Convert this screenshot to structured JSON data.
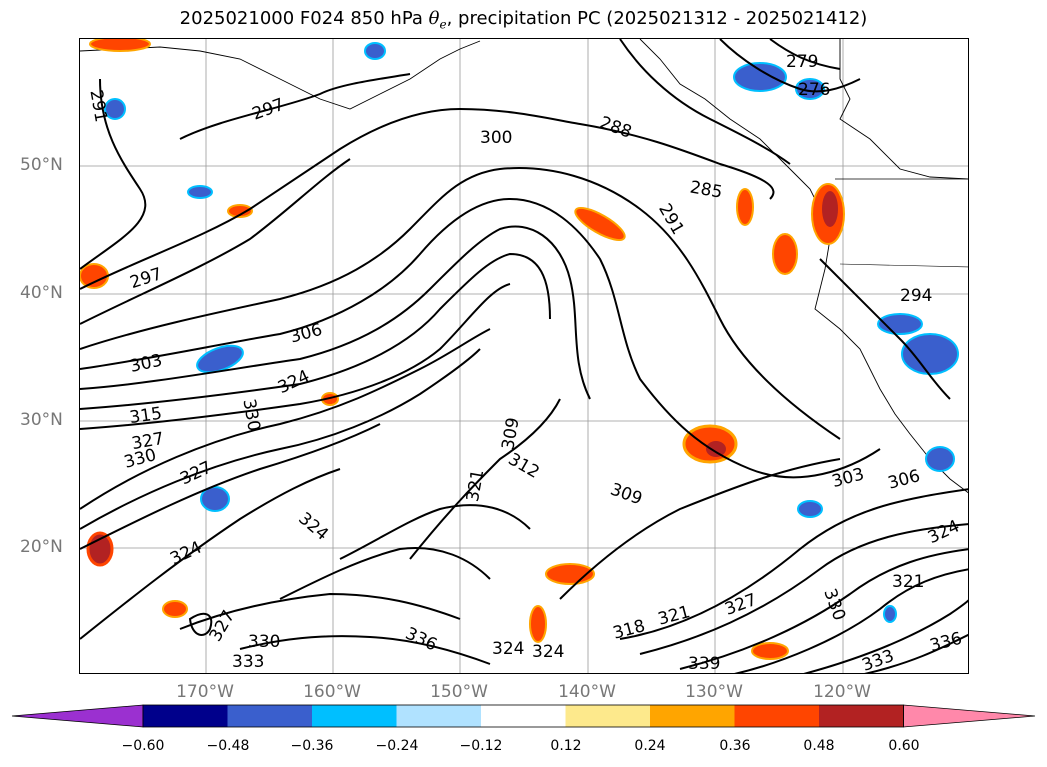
{
  "title": {
    "run": "2025021000 F024 850 hPa ",
    "theta_symbol": "θ",
    "theta_sub": "e",
    "rest": ", precipitation PC (2025021312 - 2025021412)"
  },
  "axes": {
    "lat_labels": [
      "50°N",
      "40°N",
      "30°N",
      "20°N"
    ],
    "lon_labels": [
      "170°W",
      "160°W",
      "150°W",
      "140°W",
      "130°W",
      "120°W"
    ]
  },
  "contour_labels": [
    {
      "text": "291"
    },
    {
      "text": "297"
    },
    {
      "text": "300"
    },
    {
      "text": "288"
    },
    {
      "text": "285"
    },
    {
      "text": "279"
    },
    {
      "text": "276"
    },
    {
      "text": "291"
    },
    {
      "text": "297"
    },
    {
      "text": "306"
    },
    {
      "text": "303"
    },
    {
      "text": "324"
    },
    {
      "text": "315"
    },
    {
      "text": "330"
    },
    {
      "text": "327"
    },
    {
      "text": "330"
    },
    {
      "text": "309"
    },
    {
      "text": "312"
    },
    {
      "text": "321"
    },
    {
      "text": "309"
    },
    {
      "text": "303"
    },
    {
      "text": "306"
    },
    {
      "text": "324"
    },
    {
      "text": "321"
    },
    {
      "text": "330"
    },
    {
      "text": "294"
    },
    {
      "text": "327"
    },
    {
      "text": "324"
    },
    {
      "text": "327"
    },
    {
      "text": "330"
    },
    {
      "text": "333"
    },
    {
      "text": "336"
    },
    {
      "text": "324"
    },
    {
      "text": "324"
    },
    {
      "text": "318"
    },
    {
      "text": "321"
    },
    {
      "text": "327"
    },
    {
      "text": "339"
    },
    {
      "text": "333"
    },
    {
      "text": "336"
    },
    {
      "text": "324"
    }
  ],
  "colorbar": {
    "labels": [
      "−0.60",
      "−0.48",
      "−0.36",
      "−0.24",
      "−0.12",
      "0.12",
      "0.24",
      "0.36",
      "0.48",
      "0.60"
    ],
    "colors": [
      "#9b30d0",
      "#00008b",
      "#3a5fcd",
      "#00bfff",
      "#b0e2ff",
      "#ffffff",
      "#fde98c",
      "#ffa500",
      "#ff4500",
      "#b22222",
      "#ff88aa"
    ]
  },
  "colors": {
    "axis_text": "#777777",
    "contour": "#000000"
  }
}
